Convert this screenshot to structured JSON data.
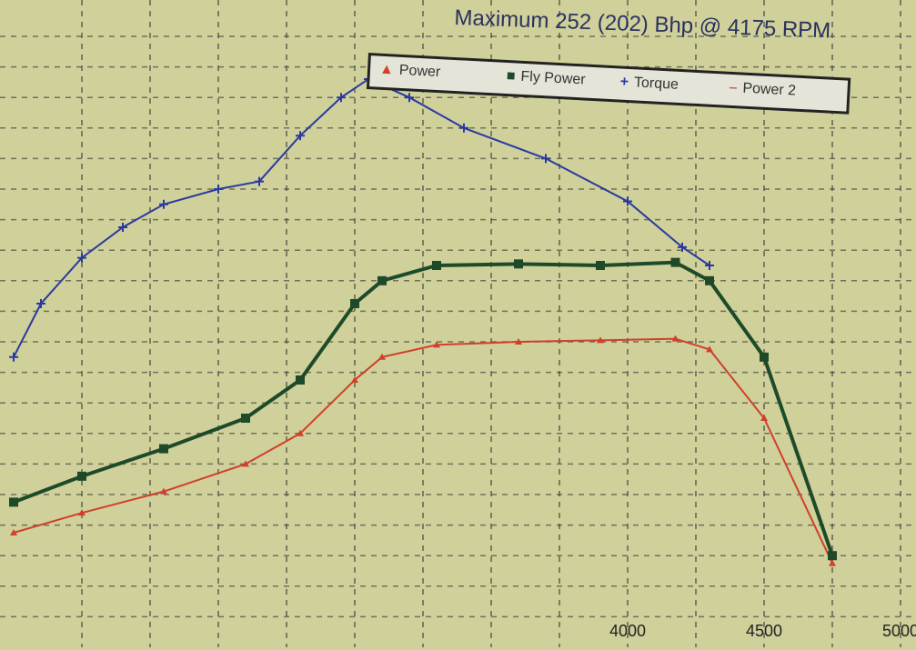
{
  "header": {
    "title": "Maximum 252 (202) Bhp @ 4175 RPM"
  },
  "chart_data": {
    "type": "line",
    "title": "Maximum 252 (202) Bhp @ 4175 RPM",
    "xlabel": "",
    "ylabel": "",
    "xlim": [
      1750,
      5000
    ],
    "ylim": [
      0,
      400
    ],
    "x_ticks": [
      "4000",
      "4500",
      "5000"
    ],
    "grid": true,
    "legend": "top-center",
    "series": [
      {
        "name": "Power",
        "color": "#d0402a",
        "marker": "triangle",
        "x": [
          1750,
          2000,
          2300,
          2600,
          2800,
          3000,
          3100,
          3300,
          3600,
          3900,
          4175,
          4300,
          4500,
          4750
        ],
        "y": [
          75,
          88,
          102,
          120,
          140,
          175,
          190,
          198,
          200,
          201,
          202,
          195,
          150,
          55
        ]
      },
      {
        "name": "Fly Power",
        "color": "#1e4a2a",
        "marker": "square",
        "x": [
          1750,
          2000,
          2300,
          2600,
          2800,
          3000,
          3100,
          3300,
          3600,
          3900,
          4175,
          4300,
          4500,
          4750
        ],
        "y": [
          95,
          112,
          130,
          150,
          175,
          225,
          240,
          250,
          251,
          250,
          252,
          240,
          190,
          60
        ]
      },
      {
        "name": "Torque",
        "color": "#2a3aa0",
        "marker": "plus",
        "x": [
          1750,
          1850,
          2000,
          2150,
          2300,
          2500,
          2650,
          2800,
          2950,
          3050,
          3200,
          3400,
          3700,
          4000,
          4200,
          4300
        ],
        "y": [
          190,
          225,
          255,
          275,
          290,
          300,
          305,
          335,
          360,
          372,
          360,
          340,
          320,
          292,
          262,
          250
        ]
      },
      {
        "name": "Power 2",
        "color": "#d06060",
        "marker": "dash",
        "x": [],
        "y": []
      }
    ]
  }
}
